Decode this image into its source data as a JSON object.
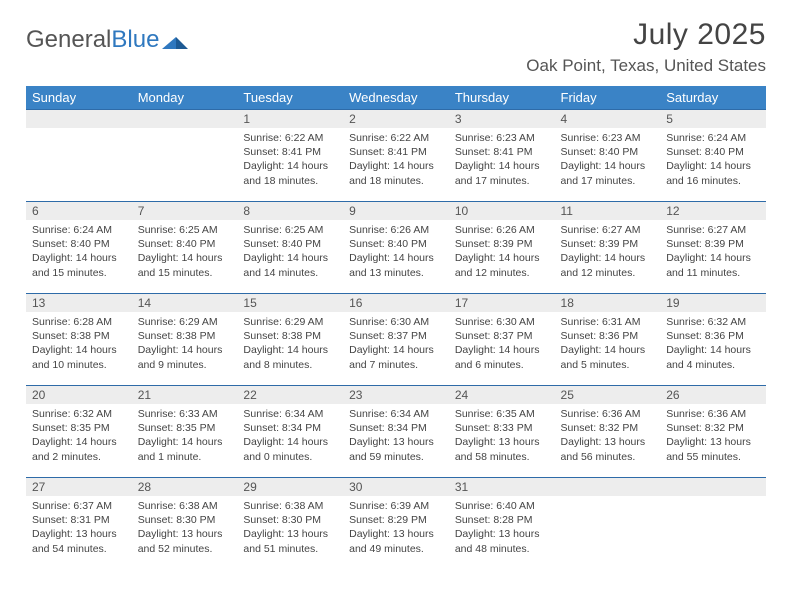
{
  "brand": {
    "part1": "General",
    "part2": "Blue"
  },
  "title": "July 2025",
  "location": "Oak Point, Texas, United States",
  "colors": {
    "header_bg": "#3a83c6",
    "header_text": "#ffffff",
    "daynum_bg": "#ededed",
    "rule": "#2e6ba8",
    "text": "#444444",
    "logo_blue": "#2f78bf"
  },
  "dayHeaders": [
    "Sunday",
    "Monday",
    "Tuesday",
    "Wednesday",
    "Thursday",
    "Friday",
    "Saturday"
  ],
  "weeks": [
    [
      null,
      null,
      {
        "n": "1",
        "sunrise": "Sunrise: 6:22 AM",
        "sunset": "Sunset: 8:41 PM",
        "d1": "Daylight: 14 hours",
        "d2": "and 18 minutes."
      },
      {
        "n": "2",
        "sunrise": "Sunrise: 6:22 AM",
        "sunset": "Sunset: 8:41 PM",
        "d1": "Daylight: 14 hours",
        "d2": "and 18 minutes."
      },
      {
        "n": "3",
        "sunrise": "Sunrise: 6:23 AM",
        "sunset": "Sunset: 8:41 PM",
        "d1": "Daylight: 14 hours",
        "d2": "and 17 minutes."
      },
      {
        "n": "4",
        "sunrise": "Sunrise: 6:23 AM",
        "sunset": "Sunset: 8:40 PM",
        "d1": "Daylight: 14 hours",
        "d2": "and 17 minutes."
      },
      {
        "n": "5",
        "sunrise": "Sunrise: 6:24 AM",
        "sunset": "Sunset: 8:40 PM",
        "d1": "Daylight: 14 hours",
        "d2": "and 16 minutes."
      }
    ],
    [
      {
        "n": "6",
        "sunrise": "Sunrise: 6:24 AM",
        "sunset": "Sunset: 8:40 PM",
        "d1": "Daylight: 14 hours",
        "d2": "and 15 minutes."
      },
      {
        "n": "7",
        "sunrise": "Sunrise: 6:25 AM",
        "sunset": "Sunset: 8:40 PM",
        "d1": "Daylight: 14 hours",
        "d2": "and 15 minutes."
      },
      {
        "n": "8",
        "sunrise": "Sunrise: 6:25 AM",
        "sunset": "Sunset: 8:40 PM",
        "d1": "Daylight: 14 hours",
        "d2": "and 14 minutes."
      },
      {
        "n": "9",
        "sunrise": "Sunrise: 6:26 AM",
        "sunset": "Sunset: 8:40 PM",
        "d1": "Daylight: 14 hours",
        "d2": "and 13 minutes."
      },
      {
        "n": "10",
        "sunrise": "Sunrise: 6:26 AM",
        "sunset": "Sunset: 8:39 PM",
        "d1": "Daylight: 14 hours",
        "d2": "and 12 minutes."
      },
      {
        "n": "11",
        "sunrise": "Sunrise: 6:27 AM",
        "sunset": "Sunset: 8:39 PM",
        "d1": "Daylight: 14 hours",
        "d2": "and 12 minutes."
      },
      {
        "n": "12",
        "sunrise": "Sunrise: 6:27 AM",
        "sunset": "Sunset: 8:39 PM",
        "d1": "Daylight: 14 hours",
        "d2": "and 11 minutes."
      }
    ],
    [
      {
        "n": "13",
        "sunrise": "Sunrise: 6:28 AM",
        "sunset": "Sunset: 8:38 PM",
        "d1": "Daylight: 14 hours",
        "d2": "and 10 minutes."
      },
      {
        "n": "14",
        "sunrise": "Sunrise: 6:29 AM",
        "sunset": "Sunset: 8:38 PM",
        "d1": "Daylight: 14 hours",
        "d2": "and 9 minutes."
      },
      {
        "n": "15",
        "sunrise": "Sunrise: 6:29 AM",
        "sunset": "Sunset: 8:38 PM",
        "d1": "Daylight: 14 hours",
        "d2": "and 8 minutes."
      },
      {
        "n": "16",
        "sunrise": "Sunrise: 6:30 AM",
        "sunset": "Sunset: 8:37 PM",
        "d1": "Daylight: 14 hours",
        "d2": "and 7 minutes."
      },
      {
        "n": "17",
        "sunrise": "Sunrise: 6:30 AM",
        "sunset": "Sunset: 8:37 PM",
        "d1": "Daylight: 14 hours",
        "d2": "and 6 minutes."
      },
      {
        "n": "18",
        "sunrise": "Sunrise: 6:31 AM",
        "sunset": "Sunset: 8:36 PM",
        "d1": "Daylight: 14 hours",
        "d2": "and 5 minutes."
      },
      {
        "n": "19",
        "sunrise": "Sunrise: 6:32 AM",
        "sunset": "Sunset: 8:36 PM",
        "d1": "Daylight: 14 hours",
        "d2": "and 4 minutes."
      }
    ],
    [
      {
        "n": "20",
        "sunrise": "Sunrise: 6:32 AM",
        "sunset": "Sunset: 8:35 PM",
        "d1": "Daylight: 14 hours",
        "d2": "and 2 minutes."
      },
      {
        "n": "21",
        "sunrise": "Sunrise: 6:33 AM",
        "sunset": "Sunset: 8:35 PM",
        "d1": "Daylight: 14 hours",
        "d2": "and 1 minute."
      },
      {
        "n": "22",
        "sunrise": "Sunrise: 6:34 AM",
        "sunset": "Sunset: 8:34 PM",
        "d1": "Daylight: 14 hours",
        "d2": "and 0 minutes."
      },
      {
        "n": "23",
        "sunrise": "Sunrise: 6:34 AM",
        "sunset": "Sunset: 8:34 PM",
        "d1": "Daylight: 13 hours",
        "d2": "and 59 minutes."
      },
      {
        "n": "24",
        "sunrise": "Sunrise: 6:35 AM",
        "sunset": "Sunset: 8:33 PM",
        "d1": "Daylight: 13 hours",
        "d2": "and 58 minutes."
      },
      {
        "n": "25",
        "sunrise": "Sunrise: 6:36 AM",
        "sunset": "Sunset: 8:32 PM",
        "d1": "Daylight: 13 hours",
        "d2": "and 56 minutes."
      },
      {
        "n": "26",
        "sunrise": "Sunrise: 6:36 AM",
        "sunset": "Sunset: 8:32 PM",
        "d1": "Daylight: 13 hours",
        "d2": "and 55 minutes."
      }
    ],
    [
      {
        "n": "27",
        "sunrise": "Sunrise: 6:37 AM",
        "sunset": "Sunset: 8:31 PM",
        "d1": "Daylight: 13 hours",
        "d2": "and 54 minutes."
      },
      {
        "n": "28",
        "sunrise": "Sunrise: 6:38 AM",
        "sunset": "Sunset: 8:30 PM",
        "d1": "Daylight: 13 hours",
        "d2": "and 52 minutes."
      },
      {
        "n": "29",
        "sunrise": "Sunrise: 6:38 AM",
        "sunset": "Sunset: 8:30 PM",
        "d1": "Daylight: 13 hours",
        "d2": "and 51 minutes."
      },
      {
        "n": "30",
        "sunrise": "Sunrise: 6:39 AM",
        "sunset": "Sunset: 8:29 PM",
        "d1": "Daylight: 13 hours",
        "d2": "and 49 minutes."
      },
      {
        "n": "31",
        "sunrise": "Sunrise: 6:40 AM",
        "sunset": "Sunset: 8:28 PM",
        "d1": "Daylight: 13 hours",
        "d2": "and 48 minutes."
      },
      null,
      null
    ]
  ]
}
